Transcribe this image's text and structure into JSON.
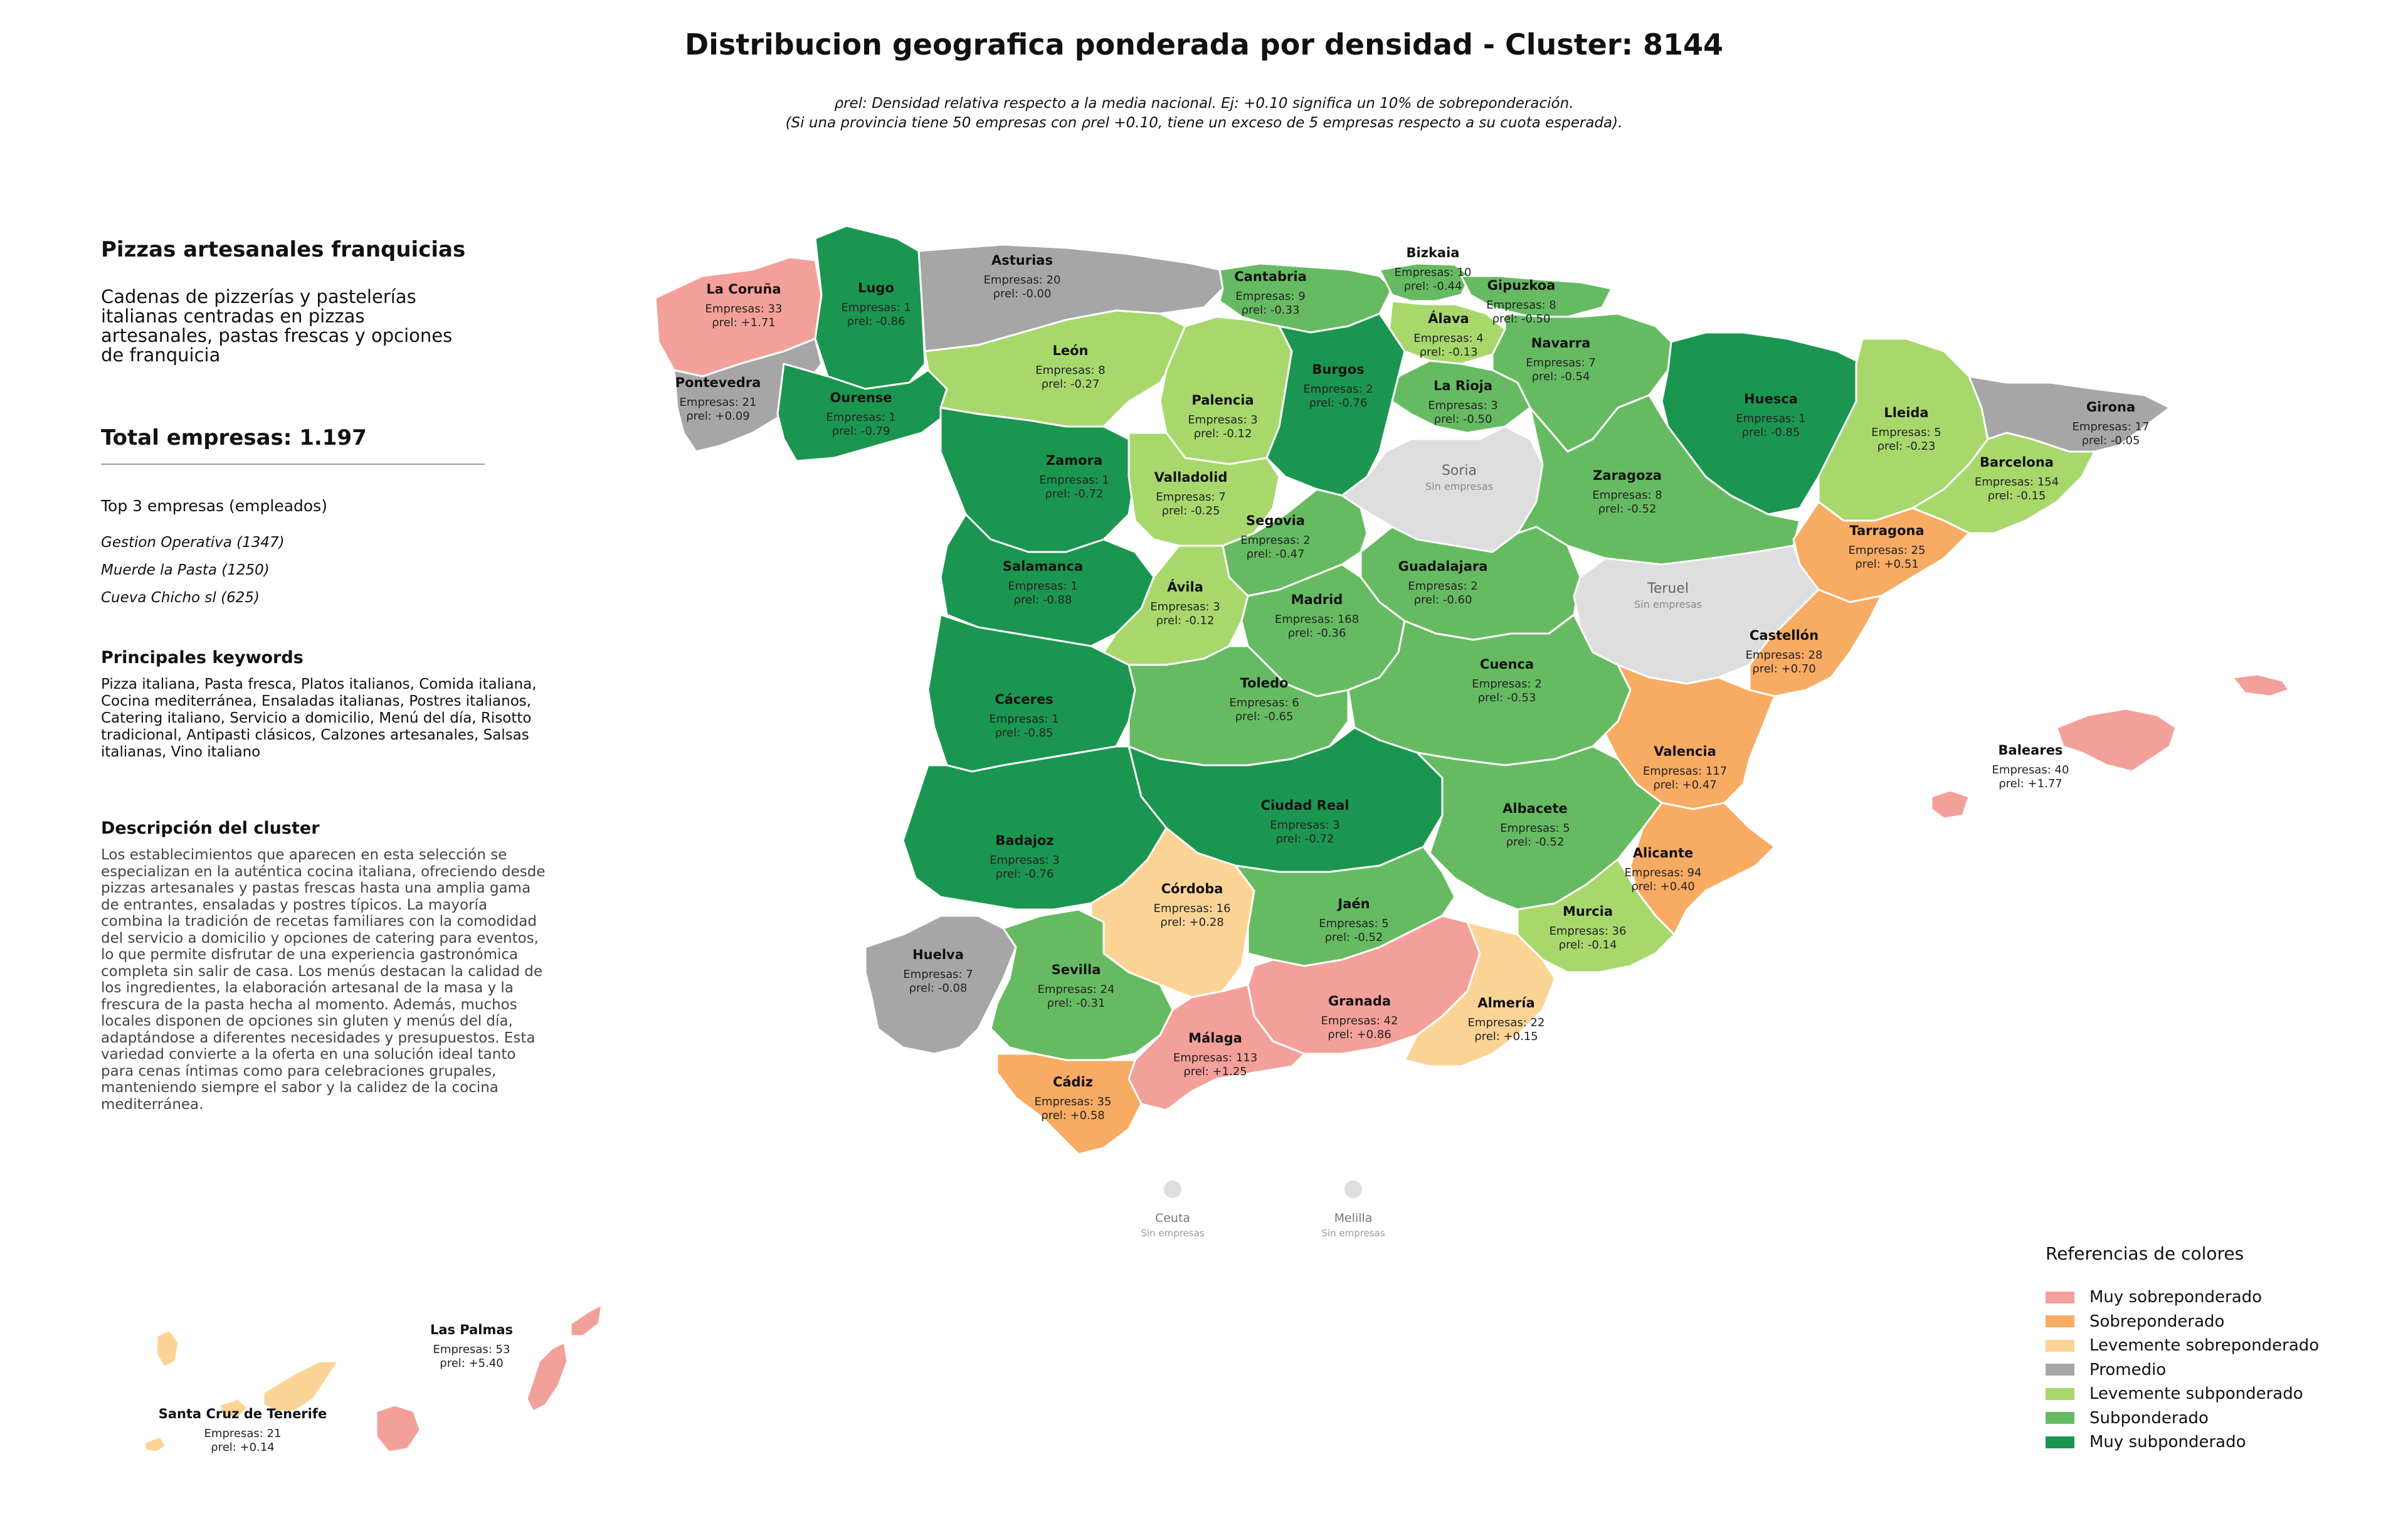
{
  "title": "Distribucion geografica ponderada por densidad - Cluster: 8144",
  "subtitle": [
    "ρrel: Densidad relativa respecto a la media nacional. Ej: +0.10 significa un 10% de sobreponderación.",
    "(Si una provincia tiene 50 empresas con ρrel +0.10, tiene un exceso de 5 empresas respecto a su cuota esperada)."
  ],
  "panel": {
    "cluster_name": "Pizzas artesanales franquicias",
    "cluster_summary": "Cadenas de pizzerías y pastelerías italianas centradas en pizzas artesanales, pastas frescas y opciones de franquicia",
    "total": "Total empresas: 1.197",
    "top_title": "Top 3 empresas (empleados)",
    "top_companies": [
      "Gestion Operativa (1347)",
      "Muerde la Pasta (1250)",
      "Cueva Chicho sl (625)"
    ],
    "keywords_title": "Principales keywords",
    "keywords": "Pizza italiana, Pasta fresca, Platos italianos, Comida italiana, Cocina mediterránea, Ensaladas italianas, Postres italianos, Catering italiano, Servicio a domicilio, Menú del día, Risotto tradicional, Antipasti clásicos, Calzones artesanales, Salsas italianas, Vino italiano",
    "description_title": "Descripción del cluster",
    "description": "Los establecimientos que aparecen en esta selección se especializan en la auténtica cocina italiana, ofreciendo desde pizzas artesanales y pastas frescas hasta una amplia gama de entrantes, ensaladas y postres típicos. La mayoría combina la tradición de recetas familiares con la comodidad del servicio a domicilio y opciones de catering para eventos, lo que permite disfrutar de una experiencia gastronómica completa sin salir de casa. Los menús destacan la calidad de los ingredientes, la elaboración artesanal de la masa y la frescura de la pasta hecha al momento. Además, muchos locales disponen de opciones sin gluten y menús del día, adaptándose a diferentes necesidades y presupuestos. Esta variedad convierte a la oferta en una solución ideal tanto para cenas íntimas como para celebraciones grupales, manteniendo siempre el sabor y la calidez de la cocina mediterránea."
  },
  "colors": {
    "muy_sobre": "#f4a09a",
    "sobre": "#f8ab62",
    "lev_sobre": "#fbd495",
    "promedio": "#a6a6a6",
    "lev_sub": "#a8d86c",
    "sub": "#66bb62",
    "muy_sub": "#1b9650",
    "sin": "#dedede"
  },
  "legend": {
    "title": "Referencias de colores",
    "items": [
      {
        "label": "Muy sobreponderado",
        "color_key": "muy_sobre"
      },
      {
        "label": "Sobreponderado",
        "color_key": "sobre"
      },
      {
        "label": "Levemente sobreponderado",
        "color_key": "lev_sobre"
      },
      {
        "label": "Promedio",
        "color_key": "promedio"
      },
      {
        "label": "Levemente subponderado",
        "color_key": "lev_sub"
      },
      {
        "label": "Subponderado",
        "color_key": "sub"
      },
      {
        "label": "Muy subponderado",
        "color_key": "muy_sub"
      }
    ]
  },
  "labels": {
    "empresas": "Empresas:",
    "rho": "ρrel:",
    "sin_empresas": "Sin empresas"
  },
  "provinces": [
    {
      "id": "la-coruna",
      "name": "La Coruña",
      "empresas": "33",
      "rho": "+1.71",
      "cat": "muy_sobre"
    },
    {
      "id": "lugo",
      "name": "Lugo",
      "empresas": "1",
      "rho": "-0.86",
      "cat": "muy_sub"
    },
    {
      "id": "asturias",
      "name": "Asturias",
      "empresas": "20",
      "rho": "-0.00",
      "cat": "promedio"
    },
    {
      "id": "cantabria",
      "name": "Cantabria",
      "empresas": "9",
      "rho": "-0.33",
      "cat": "sub"
    },
    {
      "id": "bizkaia",
      "name": "Bizkaia",
      "empresas": "10",
      "rho": "-0.44",
      "cat": "sub"
    },
    {
      "id": "gipuzkoa",
      "name": "Gipuzkoa",
      "empresas": "8",
      "rho": "-0.50",
      "cat": "sub"
    },
    {
      "id": "alava",
      "name": "Álava",
      "empresas": "4",
      "rho": "-0.13",
      "cat": "lev_sub"
    },
    {
      "id": "navarra",
      "name": "Navarra",
      "empresas": "7",
      "rho": "-0.54",
      "cat": "sub"
    },
    {
      "id": "pontevedra",
      "name": "Pontevedra",
      "empresas": "21",
      "rho": "+0.09",
      "cat": "promedio"
    },
    {
      "id": "ourense",
      "name": "Ourense",
      "empresas": "1",
      "rho": "-0.79",
      "cat": "muy_sub"
    },
    {
      "id": "leon",
      "name": "León",
      "empresas": "8",
      "rho": "-0.27",
      "cat": "lev_sub"
    },
    {
      "id": "palencia",
      "name": "Palencia",
      "empresas": "3",
      "rho": "-0.12",
      "cat": "lev_sub"
    },
    {
      "id": "burgos",
      "name": "Burgos",
      "empresas": "2",
      "rho": "-0.76",
      "cat": "muy_sub"
    },
    {
      "id": "la-rioja",
      "name": "La Rioja",
      "empresas": "3",
      "rho": "-0.50",
      "cat": "sub"
    },
    {
      "id": "huesca",
      "name": "Huesca",
      "empresas": "1",
      "rho": "-0.85",
      "cat": "muy_sub"
    },
    {
      "id": "lleida",
      "name": "Lleida",
      "empresas": "5",
      "rho": "-0.23",
      "cat": "lev_sub"
    },
    {
      "id": "girona",
      "name": "Girona",
      "empresas": "17",
      "rho": "-0.05",
      "cat": "promedio"
    },
    {
      "id": "barcelona",
      "name": "Barcelona",
      "empresas": "154",
      "rho": "-0.15",
      "cat": "lev_sub"
    },
    {
      "id": "zamora",
      "name": "Zamora",
      "empresas": "1",
      "rho": "-0.72",
      "cat": "muy_sub"
    },
    {
      "id": "valladolid",
      "name": "Valladolid",
      "empresas": "7",
      "rho": "-0.25",
      "cat": "lev_sub"
    },
    {
      "id": "soria",
      "name": "Soria",
      "empresas": "",
      "rho": "",
      "cat": "sin"
    },
    {
      "id": "zaragoza",
      "name": "Zaragoza",
      "empresas": "8",
      "rho": "-0.52",
      "cat": "sub"
    },
    {
      "id": "tarragona",
      "name": "Tarragona",
      "empresas": "25",
      "rho": "+0.51",
      "cat": "sobre"
    },
    {
      "id": "salamanca",
      "name": "Salamanca",
      "empresas": "1",
      "rho": "-0.88",
      "cat": "muy_sub"
    },
    {
      "id": "segovia",
      "name": "Segovia",
      "empresas": "2",
      "rho": "-0.47",
      "cat": "sub"
    },
    {
      "id": "guadalajara",
      "name": "Guadalajara",
      "empresas": "2",
      "rho": "-0.60",
      "cat": "sub"
    },
    {
      "id": "teruel",
      "name": "Teruel",
      "empresas": "",
      "rho": "",
      "cat": "sin"
    },
    {
      "id": "avila",
      "name": "Ávila",
      "empresas": "3",
      "rho": "-0.12",
      "cat": "lev_sub"
    },
    {
      "id": "madrid",
      "name": "Madrid",
      "empresas": "168",
      "rho": "-0.36",
      "cat": "sub"
    },
    {
      "id": "castellon",
      "name": "Castellón",
      "empresas": "28",
      "rho": "+0.70",
      "cat": "sobre"
    },
    {
      "id": "caceres",
      "name": "Cáceres",
      "empresas": "1",
      "rho": "-0.85",
      "cat": "muy_sub"
    },
    {
      "id": "toledo",
      "name": "Toledo",
      "empresas": "6",
      "rho": "-0.65",
      "cat": "sub"
    },
    {
      "id": "cuenca",
      "name": "Cuenca",
      "empresas": "2",
      "rho": "-0.53",
      "cat": "sub"
    },
    {
      "id": "valencia",
      "name": "Valencia",
      "empresas": "117",
      "rho": "+0.47",
      "cat": "sobre"
    },
    {
      "id": "baleares",
      "name": "Baleares",
      "empresas": "40",
      "rho": "+1.77",
      "cat": "muy_sobre"
    },
    {
      "id": "ciudad-real",
      "name": "Ciudad Real",
      "empresas": "3",
      "rho": "-0.72",
      "cat": "muy_sub"
    },
    {
      "id": "badajoz",
      "name": "Badajoz",
      "empresas": "3",
      "rho": "-0.76",
      "cat": "muy_sub"
    },
    {
      "id": "albacete",
      "name": "Albacete",
      "empresas": "5",
      "rho": "-0.52",
      "cat": "sub"
    },
    {
      "id": "alicante",
      "name": "Alicante",
      "empresas": "94",
      "rho": "+0.40",
      "cat": "sobre"
    },
    {
      "id": "cordoba",
      "name": "Córdoba",
      "empresas": "16",
      "rho": "+0.28",
      "cat": "lev_sobre"
    },
    {
      "id": "jaen",
      "name": "Jaén",
      "empresas": "5",
      "rho": "-0.52",
      "cat": "sub"
    },
    {
      "id": "murcia",
      "name": "Murcia",
      "empresas": "36",
      "rho": "-0.14",
      "cat": "lev_sub"
    },
    {
      "id": "huelva",
      "name": "Huelva",
      "empresas": "7",
      "rho": "-0.08",
      "cat": "promedio"
    },
    {
      "id": "sevilla",
      "name": "Sevilla",
      "empresas": "24",
      "rho": "-0.31",
      "cat": "sub"
    },
    {
      "id": "granada",
      "name": "Granada",
      "empresas": "42",
      "rho": "+0.86",
      "cat": "muy_sobre"
    },
    {
      "id": "almeria",
      "name": "Almería",
      "empresas": "22",
      "rho": "+0.15",
      "cat": "lev_sobre"
    },
    {
      "id": "malaga",
      "name": "Málaga",
      "empresas": "113",
      "rho": "+1.25",
      "cat": "muy_sobre"
    },
    {
      "id": "cadiz",
      "name": "Cádiz",
      "empresas": "35",
      "rho": "+0.58",
      "cat": "sobre"
    },
    {
      "id": "ceuta",
      "name": "Ceuta",
      "empresas": "",
      "rho": "",
      "cat": "sin"
    },
    {
      "id": "melilla",
      "name": "Melilla",
      "empresas": "",
      "rho": "",
      "cat": "sin"
    },
    {
      "id": "las-palmas",
      "name": "Las Palmas",
      "empresas": "53",
      "rho": "+5.40",
      "cat": "muy_sobre"
    },
    {
      "id": "santa-cruz",
      "name": "Santa Cruz de Tenerife",
      "empresas": "21",
      "rho": "+0.14",
      "cat": "lev_sobre"
    }
  ]
}
